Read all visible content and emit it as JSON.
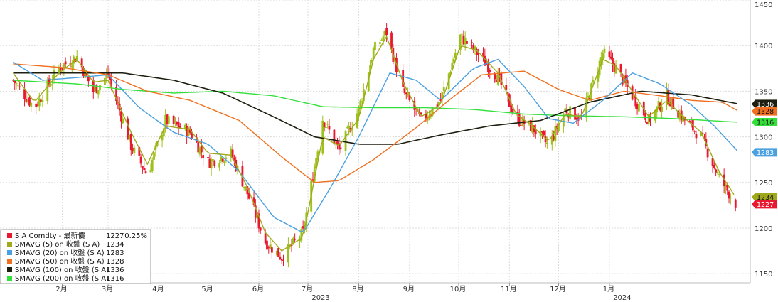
{
  "chart_data": {
    "type": "candlestick",
    "title": "",
    "xlabel": "",
    "ylabel": "",
    "ylim": [
      1140,
      1450
    ],
    "y_ticks": [
      1150,
      1200,
      1250,
      1300,
      1350,
      1400,
      1450
    ],
    "grid": "on",
    "legend_placement": "bottom-left",
    "x_month_labels": [
      "2月",
      "3月",
      "4月",
      "5月",
      "6月",
      "7月",
      "8月",
      "9月",
      "10月",
      "11月",
      "12月",
      "1月"
    ],
    "year_labels": [
      {
        "label": "2023",
        "month_index": 5
      },
      {
        "label": "2024",
        "month_index": 11
      }
    ],
    "price_anchors": [
      [
        "2023-01-02",
        1362
      ],
      [
        "2023-01-15",
        1332
      ],
      [
        "2023-01-30",
        1376
      ],
      [
        "2023-02-10",
        1388
      ],
      [
        "2023-02-20",
        1350
      ],
      [
        "2023-03-01",
        1368
      ],
      [
        "2023-03-15",
        1290
      ],
      [
        "2023-03-25",
        1258
      ],
      [
        "2023-04-05",
        1318
      ],
      [
        "2023-04-20",
        1305
      ],
      [
        "2023-05-01",
        1272
      ],
      [
        "2023-05-15",
        1282
      ],
      [
        "2023-05-25",
        1238
      ],
      [
        "2023-06-05",
        1185
      ],
      [
        "2023-06-15",
        1168
      ],
      [
        "2023-06-28",
        1195
      ],
      [
        "2023-07-10",
        1320
      ],
      [
        "2023-07-20",
        1285
      ],
      [
        "2023-08-01",
        1330
      ],
      [
        "2023-08-10",
        1395
      ],
      [
        "2023-08-18",
        1415
      ],
      [
        "2023-08-28",
        1350
      ],
      [
        "2023-09-08",
        1318
      ],
      [
        "2023-09-20",
        1340
      ],
      [
        "2023-10-02",
        1410
      ],
      [
        "2023-10-12",
        1392
      ],
      [
        "2023-10-25",
        1365
      ],
      [
        "2023-11-05",
        1320
      ],
      [
        "2023-11-15",
        1310
      ],
      [
        "2023-11-25",
        1290
      ],
      [
        "2023-12-05",
        1330
      ],
      [
        "2023-12-15",
        1320
      ],
      [
        "2023-12-28",
        1392
      ],
      [
        "2024-01-05",
        1375
      ],
      [
        "2024-01-15",
        1345
      ],
      [
        "2024-01-25",
        1318
      ],
      [
        "2024-02-05",
        1345
      ],
      [
        "2024-02-15",
        1320
      ],
      [
        "2024-02-26",
        1300
      ],
      [
        "2024-03-08",
        1255
      ],
      [
        "2024-03-18",
        1227
      ]
    ],
    "series": [
      {
        "name": "S A Comdty - 最新價",
        "color": "#e8182f",
        "last_value_label": "1227",
        "change_label": "0.25%"
      },
      {
        "name": "SMAVG (5)  on 收盤 (S A)",
        "color": "#a0a81c",
        "last_value_label": "1234",
        "anchors": [
          [
            "2023-01-02",
            1370
          ],
          [
            "2023-01-15",
            1338
          ],
          [
            "2023-01-30",
            1370
          ],
          [
            "2023-02-10",
            1385
          ],
          [
            "2023-02-20",
            1360
          ],
          [
            "2023-03-01",
            1362
          ],
          [
            "2023-03-15",
            1305
          ],
          [
            "2023-03-25",
            1270
          ],
          [
            "2023-04-05",
            1312
          ],
          [
            "2023-04-20",
            1308
          ],
          [
            "2023-05-01",
            1282
          ],
          [
            "2023-05-15",
            1280
          ],
          [
            "2023-05-25",
            1245
          ],
          [
            "2023-06-05",
            1195
          ],
          [
            "2023-06-15",
            1175
          ],
          [
            "2023-06-28",
            1190
          ],
          [
            "2023-07-10",
            1300
          ],
          [
            "2023-07-20",
            1290
          ],
          [
            "2023-08-01",
            1320
          ],
          [
            "2023-08-10",
            1385
          ],
          [
            "2023-08-18",
            1410
          ],
          [
            "2023-08-28",
            1360
          ],
          [
            "2023-09-08",
            1322
          ],
          [
            "2023-09-20",
            1335
          ],
          [
            "2023-10-02",
            1400
          ],
          [
            "2023-10-12",
            1395
          ],
          [
            "2023-10-25",
            1370
          ],
          [
            "2023-11-05",
            1325
          ],
          [
            "2023-11-15",
            1312
          ],
          [
            "2023-11-25",
            1295
          ],
          [
            "2023-12-05",
            1325
          ],
          [
            "2023-12-15",
            1322
          ],
          [
            "2023-12-28",
            1385
          ],
          [
            "2024-01-05",
            1378
          ],
          [
            "2024-01-15",
            1350
          ],
          [
            "2024-01-25",
            1322
          ],
          [
            "2024-02-05",
            1340
          ],
          [
            "2024-02-15",
            1322
          ],
          [
            "2024-02-26",
            1305
          ],
          [
            "2024-03-08",
            1262
          ],
          [
            "2024-03-18",
            1234
          ]
        ]
      },
      {
        "name": "SMAVG (20)  on 收盤 (S A)",
        "color": "#4aa0e0",
        "last_value_label": "1283",
        "anchors": [
          [
            "2023-01-02",
            1382
          ],
          [
            "2023-01-20",
            1362
          ],
          [
            "2023-02-10",
            1365
          ],
          [
            "2023-03-01",
            1368
          ],
          [
            "2023-03-20",
            1332
          ],
          [
            "2023-04-10",
            1305
          ],
          [
            "2023-05-01",
            1292
          ],
          [
            "2023-05-20",
            1262
          ],
          [
            "2023-06-10",
            1212
          ],
          [
            "2023-06-28",
            1195
          ],
          [
            "2023-07-15",
            1245
          ],
          [
            "2023-08-01",
            1300
          ],
          [
            "2023-08-20",
            1370
          ],
          [
            "2023-09-05",
            1362
          ],
          [
            "2023-09-20",
            1340
          ],
          [
            "2023-10-10",
            1375
          ],
          [
            "2023-10-25",
            1385
          ],
          [
            "2023-11-10",
            1355
          ],
          [
            "2023-11-25",
            1320
          ],
          [
            "2023-12-10",
            1315
          ],
          [
            "2023-12-28",
            1340
          ],
          [
            "2024-01-15",
            1370
          ],
          [
            "2024-02-01",
            1358
          ],
          [
            "2024-02-20",
            1335
          ],
          [
            "2024-03-05",
            1312
          ],
          [
            "2024-03-20",
            1283
          ]
        ]
      },
      {
        "name": "SMAVG (50)  on 收盤 (S A)",
        "color": "#f07020",
        "last_value_label": "1328",
        "anchors": [
          [
            "2023-01-02",
            1380
          ],
          [
            "2023-02-01",
            1376
          ],
          [
            "2023-03-01",
            1368
          ],
          [
            "2023-03-25",
            1350
          ],
          [
            "2023-04-20",
            1340
          ],
          [
            "2023-05-20",
            1318
          ],
          [
            "2023-06-15",
            1278
          ],
          [
            "2023-07-05",
            1250
          ],
          [
            "2023-07-20",
            1252
          ],
          [
            "2023-08-10",
            1275
          ],
          [
            "2023-09-05",
            1310
          ],
          [
            "2023-09-25",
            1340
          ],
          [
            "2023-10-15",
            1368
          ],
          [
            "2023-11-10",
            1372
          ],
          [
            "2023-12-01",
            1352
          ],
          [
            "2023-12-20",
            1340
          ],
          [
            "2024-01-10",
            1350
          ],
          [
            "2024-02-01",
            1345
          ],
          [
            "2024-02-20",
            1340
          ],
          [
            "2024-03-10",
            1338
          ],
          [
            "2024-03-20",
            1328
          ]
        ]
      },
      {
        "name": "SMAVG (100)  on 收盤 (S A)",
        "color": "#1e1e10",
        "last_value_label": "1336",
        "anchors": [
          [
            "2023-01-02",
            1370
          ],
          [
            "2023-02-10",
            1370
          ],
          [
            "2023-03-10",
            1370
          ],
          [
            "2023-04-10",
            1362
          ],
          [
            "2023-05-10",
            1348
          ],
          [
            "2023-06-10",
            1322
          ],
          [
            "2023-07-05",
            1300
          ],
          [
            "2023-08-01",
            1292
          ],
          [
            "2023-08-25",
            1292
          ],
          [
            "2023-09-20",
            1302
          ],
          [
            "2023-10-20",
            1312
          ],
          [
            "2023-11-20",
            1318
          ],
          [
            "2023-12-20",
            1338
          ],
          [
            "2024-01-20",
            1350
          ],
          [
            "2024-02-20",
            1346
          ],
          [
            "2024-03-20",
            1336
          ]
        ]
      },
      {
        "name": "SMAVG (200)  on 收盤 (S A)",
        "color": "#33e03a",
        "last_value_label": "1316",
        "anchors": [
          [
            "2023-01-02",
            1362
          ],
          [
            "2023-02-10",
            1358
          ],
          [
            "2023-03-10",
            1352
          ],
          [
            "2023-04-10",
            1348
          ],
          [
            "2023-05-10",
            1350
          ],
          [
            "2023-06-10",
            1345
          ],
          [
            "2023-07-10",
            1333
          ],
          [
            "2023-08-10",
            1332
          ],
          [
            "2023-09-10",
            1332
          ],
          [
            "2023-10-10",
            1330
          ],
          [
            "2023-11-10",
            1325
          ],
          [
            "2023-12-10",
            1323
          ],
          [
            "2024-01-10",
            1322
          ],
          [
            "2024-02-10",
            1320
          ],
          [
            "2024-03-20",
            1316
          ]
        ]
      }
    ],
    "colors": {
      "up": "#9cc21a",
      "down": "#e8182f",
      "grid": "#dcdcdc",
      "axis_text": "#333333"
    }
  }
}
